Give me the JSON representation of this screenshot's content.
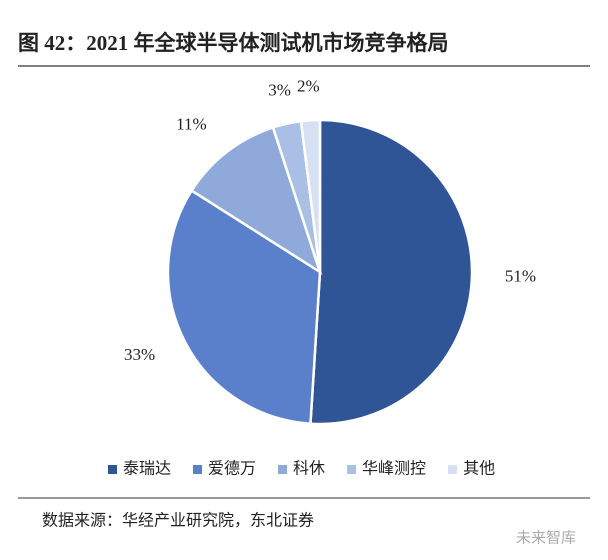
{
  "chart_data": {
    "type": "pie",
    "title": "图 42：2021 年全球半导体测试机市场竞争格局",
    "categories": [
      "泰瑞达",
      "爱德万",
      "科休",
      "华峰测控",
      "其他"
    ],
    "values": [
      51,
      33,
      11,
      3,
      2
    ],
    "value_labels": [
      "51%",
      "33%",
      "11%",
      "3%",
      "2%"
    ],
    "colors": [
      "#2f5597",
      "#5a7fcb",
      "#8fa9db",
      "#a9bfe6",
      "#d7e1f3"
    ],
    "legend": "bottom",
    "source": "数据来源：华经产业研究院，东北证券",
    "watermark": "未来智库"
  }
}
